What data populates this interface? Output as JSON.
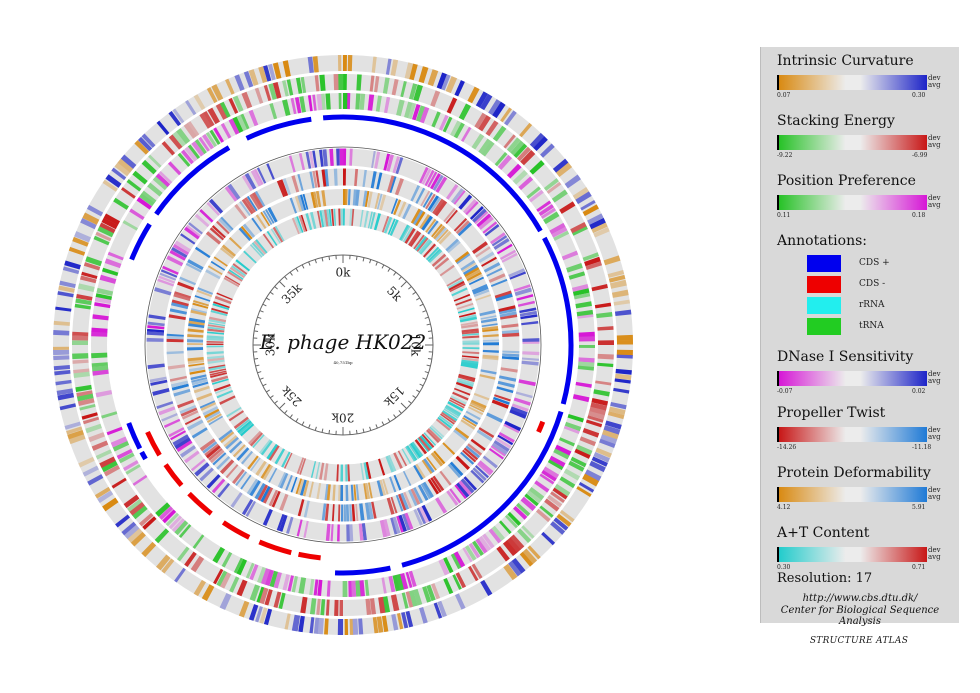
{
  "center": {
    "title": "E. phage HK022",
    "subtitle": "40,751bp"
  },
  "ticks": [
    "0k",
    "5k",
    "10k",
    "15k",
    "20k",
    "25k",
    "30k",
    "35k"
  ],
  "legend": {
    "intrinsic": {
      "title": "Intrinsic Curvature",
      "min": "0.07",
      "max": "0.30",
      "dev": "dev",
      "avg": "avg",
      "from": "#d98a12",
      "to": "#1d24c8"
    },
    "stacking": {
      "title": "Stacking Energy",
      "min": "-9.22",
      "max": "-6.99",
      "dev": "dev",
      "avg": "avg",
      "from": "#27c227",
      "to": "#c81717"
    },
    "position": {
      "title": "Position Preference",
      "min": "0.11",
      "max": "0.18",
      "dev": "dev",
      "avg": "avg",
      "from": "#27c227",
      "to": "#d617d6"
    },
    "annotations": {
      "title": "Annotations:",
      "items": [
        {
          "label": "CDS +",
          "color": "#0000ee"
        },
        {
          "label": "CDS -",
          "color": "#ee0000"
        },
        {
          "label": "rRNA",
          "color": "#22eeee"
        },
        {
          "label": "tRNA",
          "color": "#22cc22"
        }
      ]
    },
    "dnase": {
      "title": "DNase I Sensitivity",
      "min": "-0.07",
      "max": "0.02",
      "dev": "dev",
      "avg": "avg",
      "from": "#d617d6",
      "to": "#1d24c8"
    },
    "propeller": {
      "title": "Propeller Twist",
      "min": "-14.26",
      "max": "-11.18",
      "dev": "dev",
      "avg": "avg",
      "from": "#c81717",
      "to": "#1f7ad6"
    },
    "deformability": {
      "title": "Protein Deformability",
      "min": "4.12",
      "max": "5.91",
      "dev": "dev",
      "avg": "avg",
      "from": "#d98a12",
      "to": "#1f7ad6"
    },
    "at": {
      "title": "A+T Content",
      "min": "0.30",
      "max": "0.71",
      "dev": "dev",
      "avg": "avg",
      "from": "#22cccc",
      "to": "#c81717"
    },
    "resolution": "Resolution: 17",
    "url": "http://www.cbs.dtu.dk/",
    "center_name": "Center for Biological Sequence Analysis",
    "footer": "STRUCTURE ATLAS"
  }
}
